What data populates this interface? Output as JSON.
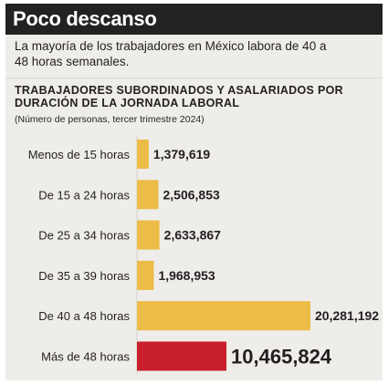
{
  "header": {
    "title": "Poco descanso"
  },
  "subtitle": "La mayoría de los trabajadores en México labora de 40 a 48 horas semanales.",
  "chart_data": {
    "type": "bar",
    "orientation": "horizontal",
    "title": "TRABAJADORES SUBORDINADOS Y ASALARIADOS POR DURACIÓN DE LA JORNADA LABORAL",
    "note": "(Número de personas, tercer trimestre 2024)",
    "categories": [
      "Menos de 15 horas",
      "De 15 a 24 horas",
      "De 25 a 34 horas",
      "De 35 a 39 horas",
      "De 40 a 48 horas",
      "Más de 48 horas"
    ],
    "values": [
      1379619,
      2506853,
      2633867,
      1968953,
      20281192,
      10465824
    ],
    "value_labels": [
      "1,379,619",
      "2,506,853",
      "2,633,867",
      "1,968,953",
      "20,281,192",
      "10,465,824"
    ],
    "colors": [
      "#ecbc47",
      "#ecbc47",
      "#ecbc47",
      "#ecbc47",
      "#ecbc47",
      "#c8202b"
    ],
    "highlight_index": 5,
    "grid": false,
    "xlim": [
      0,
      20281192
    ]
  }
}
